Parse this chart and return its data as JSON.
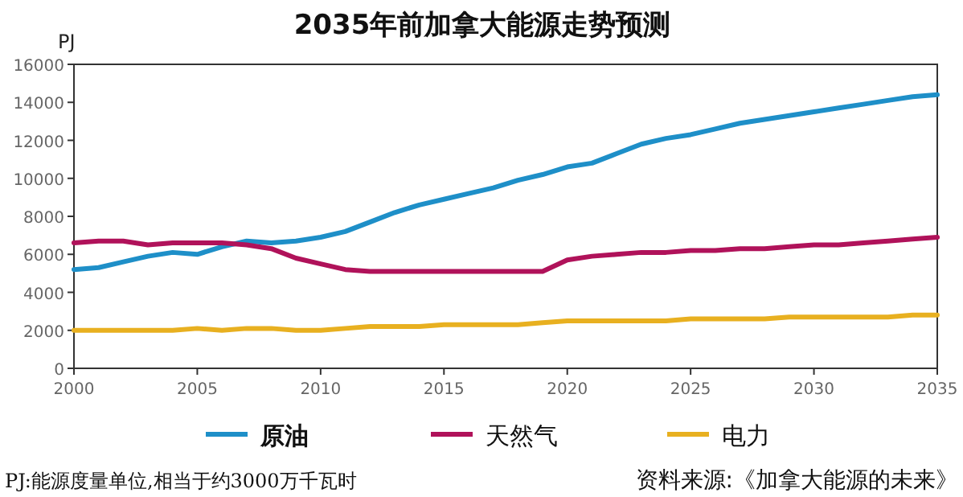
{
  "chart_data": {
    "type": "line",
    "title": "2035年前加拿大能源走势预测",
    "ylabel": "PJ",
    "x": [
      2000,
      2001,
      2002,
      2003,
      2004,
      2005,
      2006,
      2007,
      2008,
      2009,
      2010,
      2011,
      2012,
      2013,
      2014,
      2015,
      2016,
      2017,
      2018,
      2019,
      2020,
      2021,
      2022,
      2023,
      2024,
      2025,
      2026,
      2027,
      2028,
      2029,
      2030,
      2031,
      2032,
      2033,
      2034,
      2035
    ],
    "series": [
      {
        "name": "原油",
        "color": "#1e8fc8",
        "values": [
          5200,
          5300,
          5600,
          5900,
          6100,
          6000,
          6400,
          6700,
          6600,
          6700,
          6900,
          7200,
          7700,
          8200,
          8600,
          8900,
          9200,
          9500,
          9900,
          10200,
          10600,
          10800,
          11300,
          11800,
          12100,
          12300,
          12600,
          12900,
          13100,
          13300,
          13500,
          13700,
          13900,
          14100,
          14300,
          14400
        ]
      },
      {
        "name": "天然气",
        "color": "#b0125a",
        "values": [
          6600,
          6700,
          6700,
          6500,
          6600,
          6600,
          6600,
          6500,
          6300,
          5800,
          5500,
          5200,
          5100,
          5100,
          5100,
          5100,
          5100,
          5100,
          5100,
          5100,
          5700,
          5900,
          6000,
          6100,
          6100,
          6200,
          6200,
          6300,
          6300,
          6400,
          6500,
          6500,
          6600,
          6700,
          6800,
          6900
        ]
      },
      {
        "name": "电力",
        "color": "#e8b020",
        "values": [
          2000,
          2000,
          2000,
          2000,
          2000,
          2100,
          2000,
          2100,
          2100,
          2000,
          2000,
          2100,
          2200,
          2200,
          2200,
          2300,
          2300,
          2300,
          2300,
          2400,
          2500,
          2500,
          2500,
          2500,
          2500,
          2600,
          2600,
          2600,
          2600,
          2700,
          2700,
          2700,
          2700,
          2700,
          2800,
          2800
        ]
      }
    ],
    "xlim": [
      2000,
      2035
    ],
    "xticks": [
      2000,
      2005,
      2010,
      2015,
      2020,
      2025,
      2030,
      2035
    ],
    "ylim": [
      0,
      16000
    ],
    "yticks": [
      0,
      2000,
      4000,
      6000,
      8000,
      10000,
      12000,
      14000,
      16000
    ],
    "grid": false,
    "legend": "bottom",
    "marker": "none",
    "line_style": "solid",
    "annotations": [
      "PJ:能源度量单位,相当于约3000万千瓦时",
      "资料来源:《加拿大能源的未来》"
    ]
  }
}
